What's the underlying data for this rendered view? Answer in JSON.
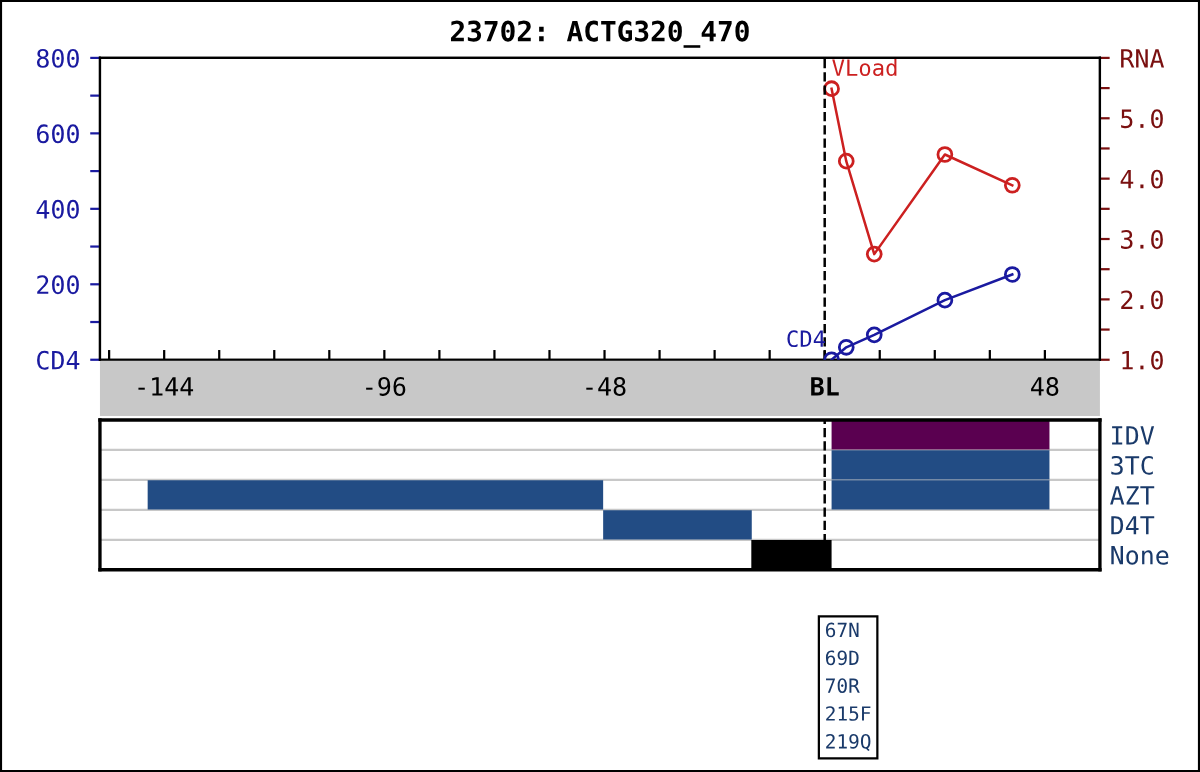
{
  "chart_data": [
    {
      "type": "line",
      "title": "23702: ACTG320_470",
      "xlim": [
        -158,
        60
      ],
      "xticks": [
        {
          "value": -156,
          "label": null
        },
        {
          "value": -144,
          "label": "-144"
        },
        {
          "value": -132,
          "label": null
        },
        {
          "value": -120,
          "label": null
        },
        {
          "value": -108,
          "label": null
        },
        {
          "value": -96,
          "label": "-96"
        },
        {
          "value": -84,
          "label": null
        },
        {
          "value": -72,
          "label": null
        },
        {
          "value": -60,
          "label": null
        },
        {
          "value": -48,
          "label": "-48"
        },
        {
          "value": -36,
          "label": null
        },
        {
          "value": -24,
          "label": null
        },
        {
          "value": -12,
          "label": null
        },
        {
          "value": 0,
          "label": "BL"
        },
        {
          "value": 12,
          "label": null
        },
        {
          "value": 24,
          "label": null
        },
        {
          "value": 36,
          "label": null
        },
        {
          "value": 48,
          "label": "48"
        }
      ],
      "ylim": [
        0,
        800
      ],
      "yticks": [
        {
          "value": 0,
          "label": "CD4"
        },
        {
          "value": 100,
          "label": null
        },
        200,
        {
          "value": 300,
          "label": null
        },
        400,
        {
          "value": 500,
          "label": null
        },
        600,
        {
          "value": 700,
          "label": null
        },
        800
      ],
      "y2lim": [
        1.0,
        6.0
      ],
      "y2ticks": [
        {
          "value": 1.0,
          "label": "1.0"
        },
        {
          "value": 1.5,
          "label": null
        },
        {
          "value": 2.0,
          "label": "2.0"
        },
        {
          "value": 2.5,
          "label": null
        },
        {
          "value": 3.0,
          "label": "3.0"
        },
        {
          "value": 3.5,
          "label": null
        },
        {
          "value": 4.0,
          "label": "4.0"
        },
        {
          "value": 4.5,
          "label": null
        },
        {
          "value": 5.0,
          "label": "5.0"
        },
        {
          "value": 5.5,
          "label": null
        },
        {
          "value": 6.0,
          "label": "RNA"
        }
      ],
      "series": [
        {
          "name": "VLoad",
          "color": "#cc2020",
          "axis": "y2",
          "x": [
            1.5,
            4.7,
            10.8,
            26.2,
            40.9
          ],
          "values": [
            5.49,
            4.29,
            2.75,
            4.4,
            3.89
          ]
        },
        {
          "name": "CD4",
          "color": "#1a1aa0",
          "axis": "y",
          "x": [
            1.5,
            4.7,
            10.8,
            26.2,
            40.9
          ],
          "values": [
            0,
            33,
            66,
            158,
            226
          ]
        }
      ],
      "marker": "circle",
      "line_style": "solid",
      "legend": false,
      "grid": false,
      "ref_lines": [
        {
          "axis": "x",
          "value": 0,
          "line_style": "dashed",
          "color": "#000000"
        }
      ]
    },
    {
      "type": "bar",
      "orientation": "horizontal",
      "categories": [
        "IDV",
        "3TC",
        "AZT",
        "D4T",
        "None"
      ],
      "xlim": [
        -158,
        60
      ],
      "tick_labels": "y",
      "series": [
        {
          "colors": [
            "#5a0050",
            "#224c84",
            "#224c84",
            "#224c84",
            "#000000"
          ],
          "base": [
            1.5,
            1.5,
            1.5,
            null,
            -16
          ],
          "values": [
            47.5,
            47.5,
            47.5,
            null,
            17.5
          ]
        },
        {
          "colors": [
            "#224c84",
            "#224c84",
            "#224c84",
            "#224c84",
            "#224c84"
          ],
          "base": [
            null,
            null,
            -147.6,
            -48.3,
            null
          ],
          "values": [
            null,
            null,
            99.3,
            32.4,
            null
          ]
        }
      ],
      "grid": false,
      "ref_lines": [
        {
          "axis": "x",
          "value": 0,
          "line_style": "dashed",
          "color": "#000000"
        }
      ],
      "annotations": [
        "67N\n69D\n70R\n215F\n219Q"
      ]
    }
  ]
}
